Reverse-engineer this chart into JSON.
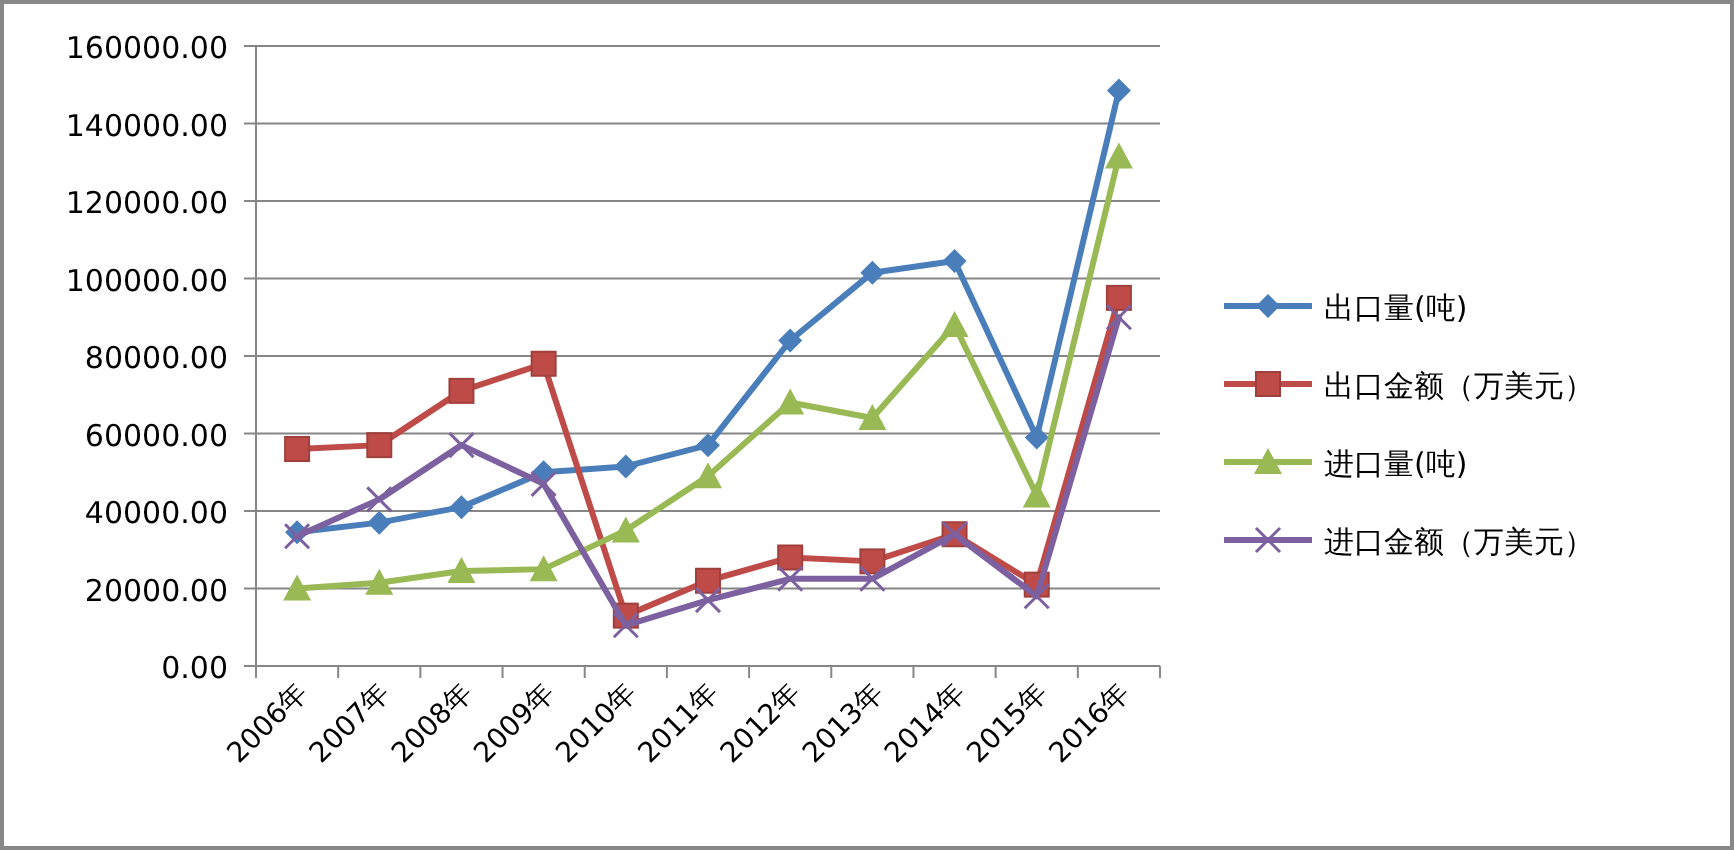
{
  "chart_data": {
    "type": "line",
    "categories": [
      "2006年",
      "2007年",
      "2008年",
      "2009年",
      "2010年",
      "2011年",
      "2012年",
      "2013年",
      "2014年",
      "2015年",
      "2016年"
    ],
    "series": [
      {
        "name": "出口量(吨)",
        "color": "#4a7ebb",
        "marker": "diamond",
        "values": [
          34500,
          37000,
          41000,
          50000,
          51500,
          57000,
          84000,
          101500,
          104500,
          59000,
          148500
        ]
      },
      {
        "name": "出口金额（万美元）",
        "color": "#be4b48",
        "marker": "square",
        "values": [
          56000,
          57000,
          71000,
          78000,
          13000,
          22000,
          28000,
          27000,
          34000,
          21000,
          95000
        ]
      },
      {
        "name": "进口量(吨)",
        "color": "#98b954",
        "marker": "triangle",
        "values": [
          20000,
          21500,
          24500,
          25000,
          35000,
          49000,
          68000,
          64000,
          88000,
          44000,
          131500
        ]
      },
      {
        "name": "进口金额（万美元）",
        "color": "#7d60a0",
        "marker": "cross",
        "values": [
          33500,
          43000,
          57000,
          47000,
          10500,
          17000,
          22500,
          22500,
          34000,
          18000,
          90000
        ]
      }
    ],
    "ylim": [
      0,
      160000
    ],
    "yticks": [
      {
        "value": 0,
        "label": "0.00"
      },
      {
        "value": 20000,
        "label": "20000.00"
      },
      {
        "value": 40000,
        "label": "40000.00"
      },
      {
        "value": 60000,
        "label": "60000.00"
      },
      {
        "value": 80000,
        "label": "80000.00"
      },
      {
        "value": 100000,
        "label": "100000.00"
      },
      {
        "value": 120000,
        "label": "120000.00"
      },
      {
        "value": 140000,
        "label": "140000.00"
      },
      {
        "value": 160000,
        "label": "160000.00"
      }
    ],
    "grid": "y",
    "legend": "right",
    "line_style": "solid"
  }
}
